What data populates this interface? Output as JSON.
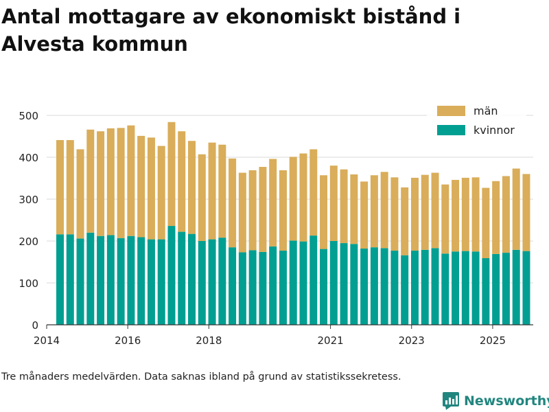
{
  "header": {
    "title": "Antal mottagare av ekonomiskt bistånd i Alvesta kommun"
  },
  "footer": {
    "note": "Tre månaders medelvärden. Data saknas ibland på grund av statistikssekretess.",
    "brand": "Newsworthy"
  },
  "colors": {
    "man": "#d9ad5a",
    "kvinnor": "#009f92",
    "grid": "#d9d9d9",
    "axis": "#333333",
    "brand": "#21867f"
  },
  "chart_data": {
    "type": "bar",
    "stacked": true,
    "title": "Antal mottagare av ekonomiskt bistånd i Alvesta kommun",
    "xlabel": "",
    "ylabel": "",
    "ylim": [
      0,
      500
    ],
    "yticks": [
      0,
      100,
      200,
      300,
      400,
      500
    ],
    "grid": true,
    "legend_position": "top-right",
    "x_axis": {
      "start": 2014.0,
      "end": 2026.0,
      "ticks": [
        {
          "label": "2014",
          "value": 2014.0
        },
        {
          "label": "2016",
          "value": 2016.0
        },
        {
          "label": "2018",
          "value": 2018.0
        },
        {
          "label": "2021",
          "value": 2021.0
        },
        {
          "label": "2023",
          "value": 2023.0
        },
        {
          "label": "2025",
          "value": 2025.0
        }
      ]
    },
    "x": [
      2014.33,
      2014.58,
      2014.83,
      2015.08,
      2015.33,
      2015.58,
      2015.83,
      2016.08,
      2016.33,
      2016.58,
      2016.83,
      2017.08,
      2017.33,
      2017.58,
      2017.83,
      2018.08,
      2018.33,
      2018.58,
      2018.83,
      2019.08,
      2019.33,
      2019.58,
      2019.83,
      2020.08,
      2020.33,
      2020.58,
      2020.83,
      2021.08,
      2021.33,
      2021.58,
      2021.83,
      2022.08,
      2022.33,
      2022.58,
      2022.83,
      2023.08,
      2023.33,
      2023.58,
      2023.83,
      2024.08,
      2024.33,
      2024.58,
      2024.83,
      2025.08,
      2025.33,
      2025.58,
      2025.83
    ],
    "series": [
      {
        "name": "kvinnor",
        "values": [
          216,
          216,
          206,
          220,
          212,
          214,
          207,
          212,
          209,
          204,
          204,
          236,
          222,
          217,
          200,
          204,
          208,
          185,
          173,
          178,
          174,
          187,
          177,
          201,
          199,
          213,
          181,
          200,
          195,
          193,
          182,
          185,
          183,
          177,
          166,
          177,
          179,
          183,
          170,
          175,
          176,
          175,
          159,
          169,
          172,
          179,
          176
        ]
      },
      {
        "name": "män",
        "values": [
          225,
          225,
          213,
          246,
          250,
          255,
          263,
          264,
          242,
          243,
          223,
          248,
          240,
          222,
          207,
          231,
          222,
          212,
          190,
          191,
          203,
          209,
          192,
          200,
          210,
          206,
          176,
          180,
          176,
          166,
          160,
          172,
          182,
          175,
          162,
          174,
          179,
          180,
          165,
          171,
          175,
          177,
          168,
          174,
          183,
          194,
          184
        ]
      }
    ],
    "legend": [
      "män",
      "kvinnor"
    ]
  }
}
